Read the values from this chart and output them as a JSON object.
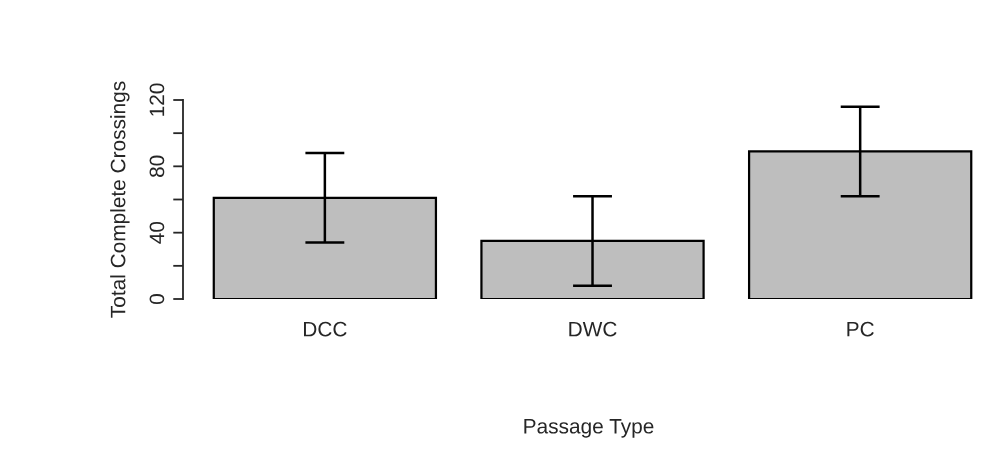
{
  "chart_data": {
    "type": "bar",
    "xlabel": "Passage Type",
    "ylabel": "Total Complete Crossings",
    "categories": [
      "DCC",
      "DWC",
      "PC"
    ],
    "values": [
      61,
      35,
      89
    ],
    "errors": [
      27,
      27,
      27
    ],
    "color": "#bebebe",
    "ylim": [
      0,
      120
    ],
    "yticks": [
      0,
      {
        "value": 20,
        "label": null
      },
      40,
      {
        "value": 60,
        "label": null
      },
      80,
      {
        "value": 100,
        "label": null
      },
      120
    ],
    "grid": false,
    "legend": false
  }
}
